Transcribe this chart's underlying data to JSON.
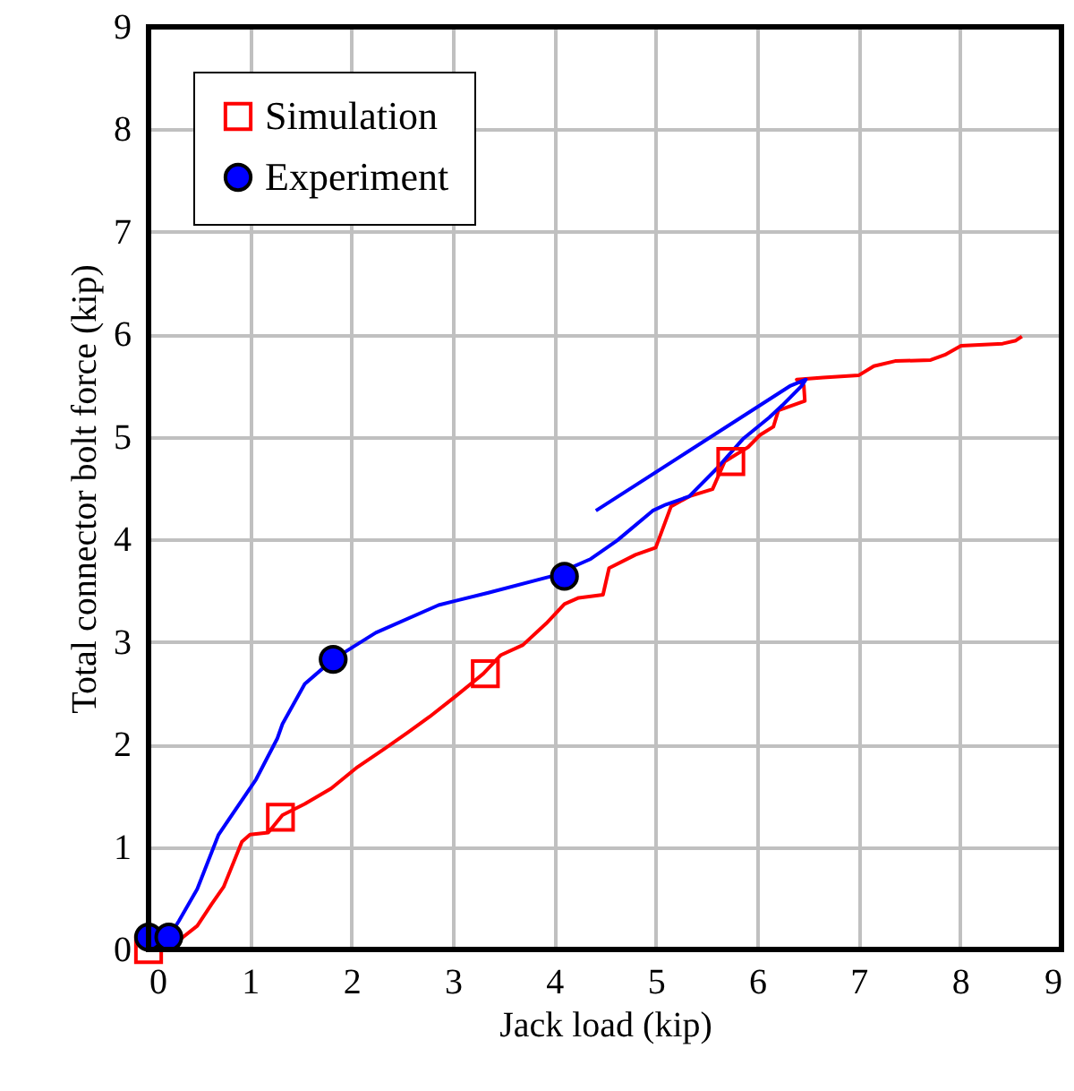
{
  "chart_data": {
    "type": "line",
    "xlabel": "Jack load  (kip)",
    "ylabel": "Total connector bolt force (kip)",
    "xlim": [
      0,
      9
    ],
    "ylim": [
      0,
      9
    ],
    "xticks": [
      0,
      1,
      2,
      3,
      4,
      5,
      6,
      7,
      8,
      9
    ],
    "yticks": [
      0,
      1,
      2,
      3,
      4,
      5,
      6,
      7,
      8,
      9
    ],
    "grid": true,
    "legend": "top left",
    "series": [
      {
        "color": "#ff0000",
        "x": [
          0,
          0.3,
          0.48,
          0.62,
          0.74,
          0.92,
          1.0,
          1.18,
          1.32,
          1.54,
          1.8,
          2.06,
          2.33,
          2.56,
          2.77,
          3.04,
          3.3,
          3.47,
          3.69,
          3.92,
          4.1,
          4.24,
          4.48,
          4.54,
          4.8,
          5.0,
          5.15,
          5.33,
          5.56,
          5.68,
          5.91,
          6.03,
          6.16,
          6.21,
          6.47,
          6.46,
          6.39,
          6.65,
          7.0,
          7.15,
          7.36,
          7.71,
          7.85,
          8.01,
          8.42,
          8.55,
          8.61
        ],
        "values": [
          0,
          0.09,
          0.23,
          0.44,
          0.61,
          1.05,
          1.12,
          1.14,
          1.31,
          1.42,
          1.57,
          1.78,
          1.96,
          2.12,
          2.27,
          2.48,
          2.69,
          2.87,
          2.97,
          3.18,
          3.37,
          3.43,
          3.46,
          3.72,
          3.85,
          3.92,
          4.32,
          4.42,
          4.49,
          4.76,
          4.9,
          5.02,
          5.1,
          5.26,
          5.35,
          5.5,
          5.56,
          5.58,
          5.6,
          5.69,
          5.74,
          5.75,
          5.8,
          5.89,
          5.91,
          5.94,
          5.98
        ]
      },
      {
        "color": "#0000ff",
        "x": [
          0,
          0.2,
          0.3,
          0.48,
          0.69,
          1.06,
          1.27,
          1.32,
          1.54,
          1.82,
          2.24,
          2.86,
          3.35,
          3.97,
          4.36,
          4.62,
          4.97,
          5.1,
          5.33,
          5.6,
          5.86,
          6.12,
          6.25,
          6.44,
          6.48,
          6.33,
          4.41
        ],
        "values": [
          0.12,
          0.12,
          0.28,
          0.59,
          1.12,
          1.66,
          2.06,
          2.2,
          2.59,
          2.83,
          3.09,
          3.36,
          3.48,
          3.64,
          3.81,
          3.99,
          4.28,
          4.34,
          4.42,
          4.69,
          4.98,
          5.19,
          5.31,
          5.5,
          5.56,
          5.5,
          4.28
        ]
      },
      {
        "name": "Simulation",
        "color": "#ff0000",
        "type": "scatter",
        "marker": "square",
        "x": [
          0,
          1.3,
          3.32,
          5.74
        ],
        "values": [
          0,
          1.29,
          2.69,
          4.76
        ]
      },
      {
        "name": "Experiment",
        "color": "#0000ff",
        "type": "scatter",
        "marker": "circle",
        "x": [
          0,
          0.2,
          1.82,
          4.1
        ],
        "values": [
          0.12,
          0.12,
          2.83,
          3.64
        ]
      }
    ]
  }
}
